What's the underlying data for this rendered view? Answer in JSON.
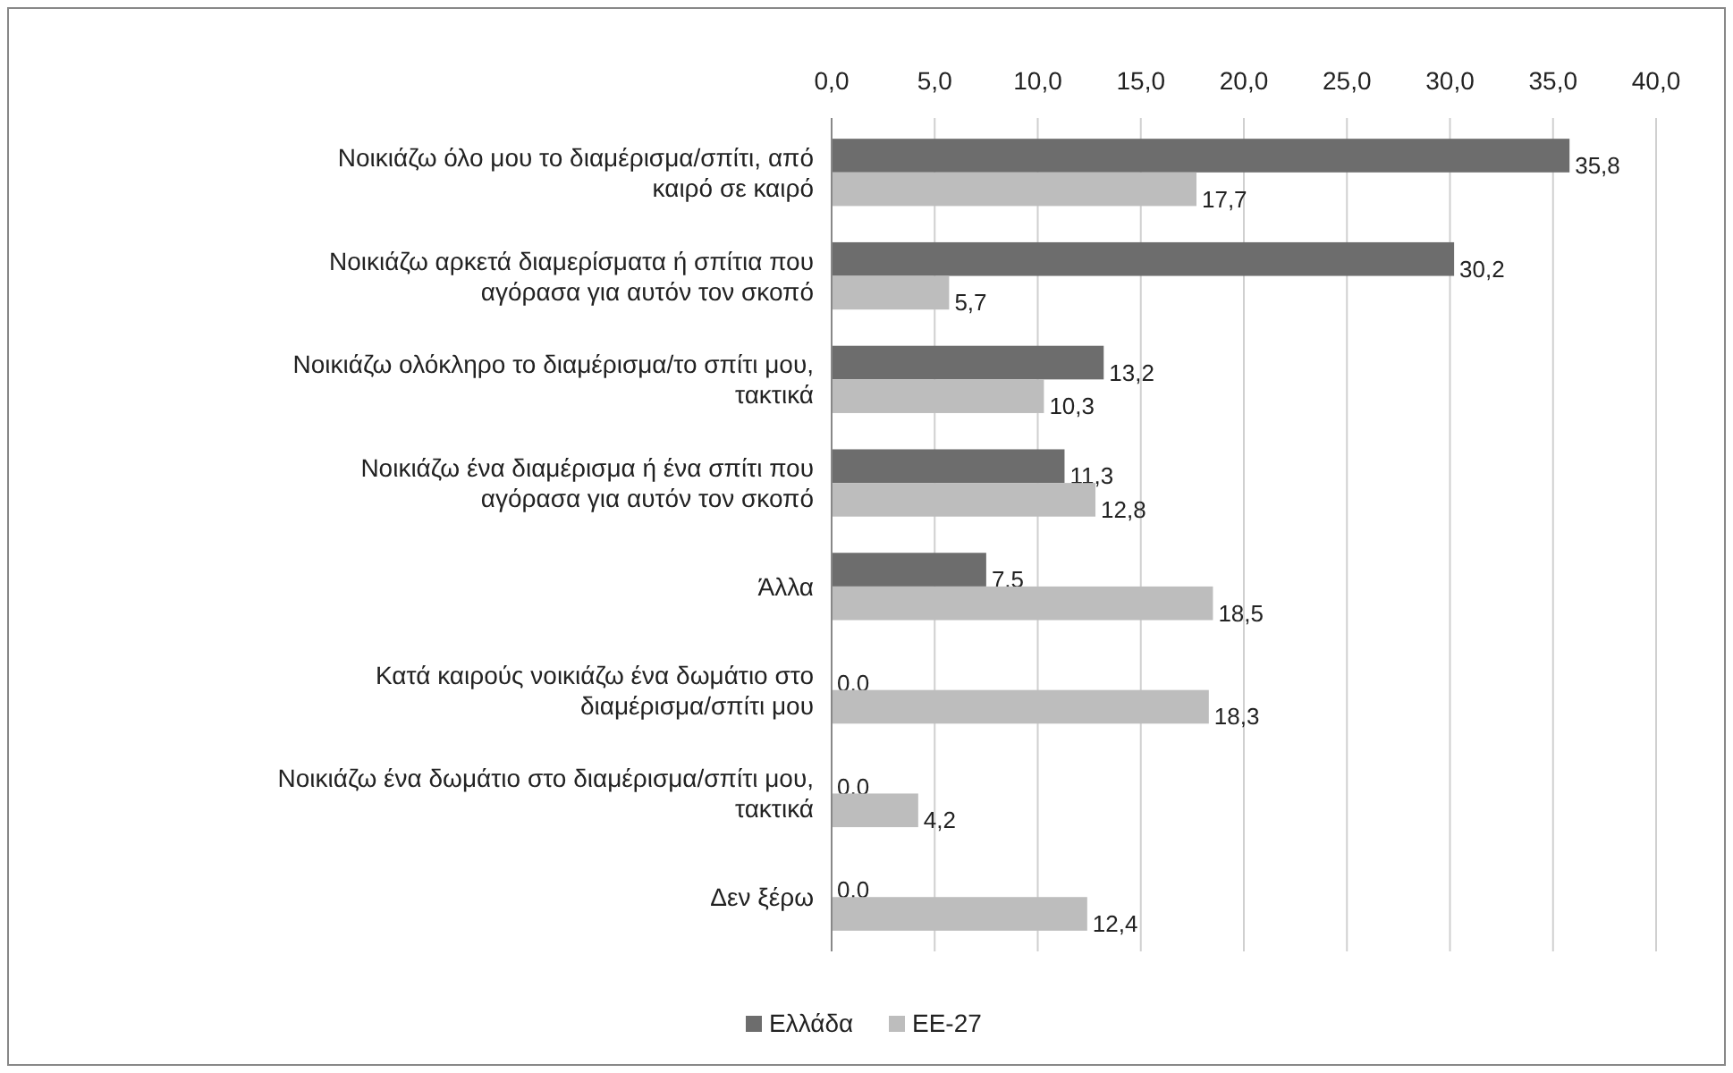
{
  "chart_data": {
    "type": "bar",
    "orientation": "horizontal",
    "categories": [
      "Νοικιάζω όλο μου το διαμέρισμα/σπίτι, από καιρό σε καιρό",
      "Νοικιάζω αρκετά διαμερίσματα ή σπίτια που αγόρασα για αυτόν τον σκοπό",
      "Νοικιάζω ολόκληρο το διαμέρισμα/το σπίτι μου, τακτικά",
      "Νοικιάζω ένα διαμέρισμα ή ένα σπίτι που αγόρασα για αυτόν τον σκοπό",
      "Άλλα",
      "Κατά καιρούς νοικιάζω ένα δωμάτιο στο διαμέρισμα/σπίτι μου",
      "Νοικιάζω ένα δωμάτιο στο διαμέρισμα/σπίτι μου, τακτικά",
      "Δεν ξέρω"
    ],
    "series": [
      {
        "name": "Ελλάδα",
        "color": "#6d6d6d",
        "values": [
          35.8,
          30.2,
          13.2,
          11.3,
          7.5,
          0.0,
          0.0,
          0.0
        ],
        "value_labels": [
          "35,8",
          "30,2",
          "13,2",
          "11,3",
          "7,5",
          "0,0",
          "0,0",
          "0,0"
        ]
      },
      {
        "name": "ΕΕ-27",
        "color": "#bdbdbd",
        "values": [
          17.7,
          5.7,
          10.3,
          12.8,
          18.5,
          18.3,
          4.2,
          12.4
        ],
        "value_labels": [
          "17,7",
          "5,7",
          "10,3",
          "12,8",
          "18,5",
          "18,3",
          "4,2",
          "12,4"
        ]
      }
    ],
    "xlim": [
      0,
      40
    ],
    "xticks": [
      {
        "value": 0,
        "label": "0,0"
      },
      {
        "value": 5,
        "label": "5,0"
      },
      {
        "value": 10,
        "label": "10,0"
      },
      {
        "value": 15,
        "label": "15,0"
      },
      {
        "value": 20,
        "label": "20,0"
      },
      {
        "value": 25,
        "label": "25,0"
      },
      {
        "value": 30,
        "label": "30,0"
      },
      {
        "value": 35,
        "label": "35,0"
      },
      {
        "value": 40,
        "label": "40,0"
      }
    ],
    "grid": "x",
    "legend": "bottom"
  }
}
